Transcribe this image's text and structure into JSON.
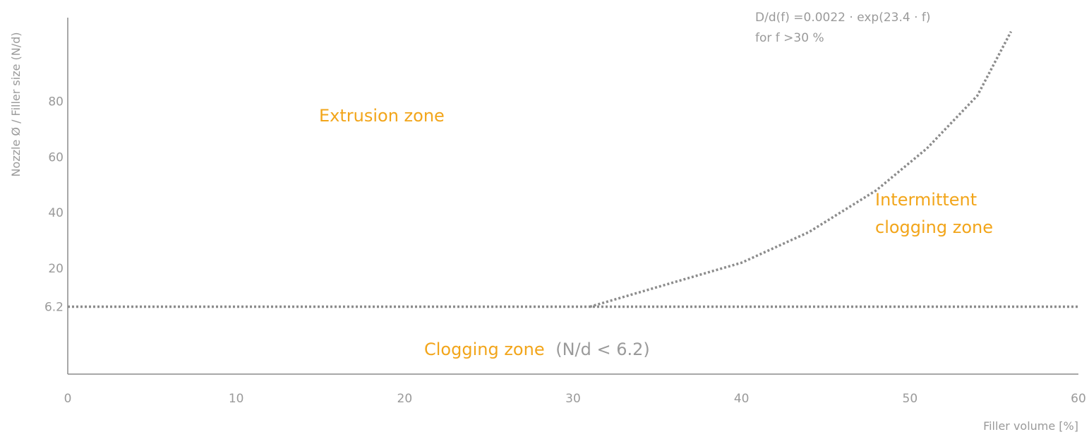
{
  "chart_data": {
    "type": "line",
    "title": "",
    "xlabel": "Filler volume [%]",
    "ylabel": "Nozzle Ø / Filler size (N/d)",
    "xlim": [
      0,
      60
    ],
    "ylim": [
      -18,
      110
    ],
    "x_ticks": [
      "0",
      "10",
      "20",
      "30",
      "40",
      "50",
      "60"
    ],
    "y_ticks": [
      "6.2",
      "20",
      "40",
      "60",
      "80"
    ],
    "grid": false,
    "series": [
      {
        "style": "dotted",
        "color": "#8c8c8c",
        "points": [
          [
            0,
            6.2
          ],
          [
            31,
            6.2
          ],
          [
            60,
            6.2
          ]
        ]
      },
      {
        "style": "dotted",
        "color": "#8c8c8c",
        "points": [
          [
            31,
            6.2
          ],
          [
            36,
            15
          ],
          [
            40,
            22
          ],
          [
            44,
            33
          ],
          [
            48,
            48
          ],
          [
            51,
            63
          ],
          [
            54,
            82
          ],
          [
            56,
            105
          ]
        ]
      }
    ],
    "annotations": {
      "formula_line1": "D/d(f) =0.0022 · exp(23.4 · f)",
      "formula_line2": "for f >30 %",
      "extrusion_zone": "Extrusion zone",
      "intermittent_line1": "Intermittent",
      "intermittent_line2": "clogging zone",
      "clogging_zone": "Clogging zone",
      "clogging_condition": "(N/d < 6.2)"
    },
    "colors": {
      "axis": "#8c8c8c",
      "text": "#9a9a9a",
      "zone": "#f2a51a",
      "curve": "#8c8c8c"
    }
  }
}
